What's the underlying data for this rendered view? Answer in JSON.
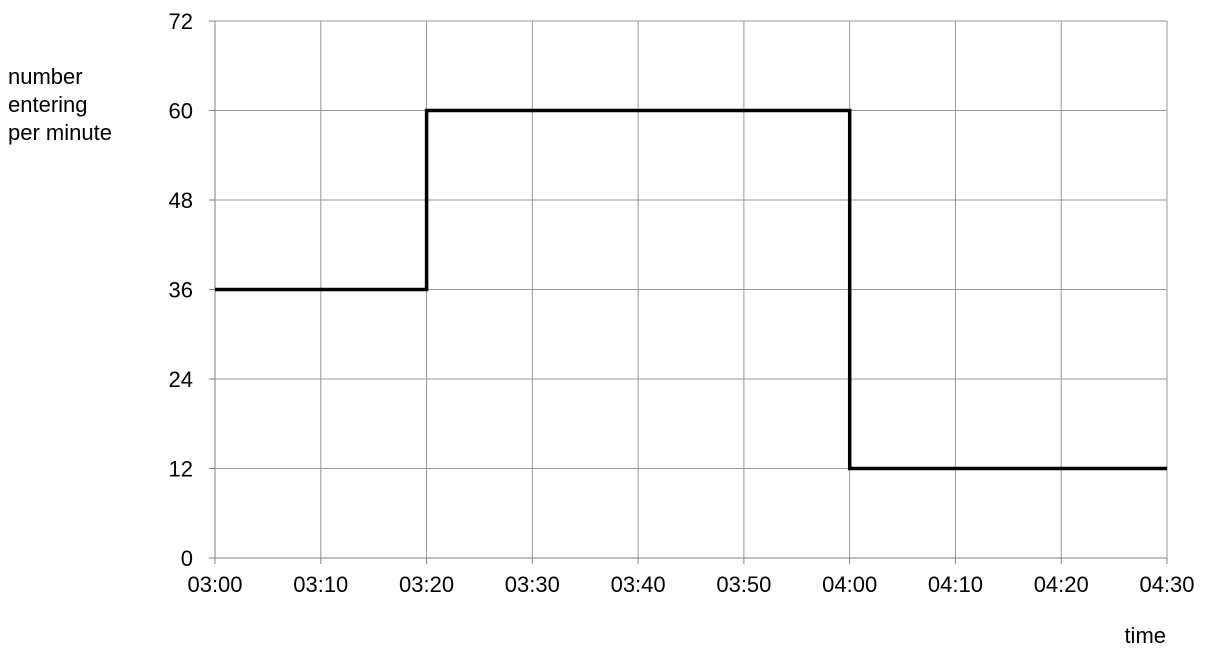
{
  "chart_data": {
    "type": "line",
    "step": true,
    "title": "",
    "xlabel": "time",
    "ylabel_lines": [
      "number",
      "entering",
      "per minute"
    ],
    "x_tick_labels": [
      "03:00",
      "03:10",
      "03:20",
      "03:30",
      "03:40",
      "03:50",
      "04:00",
      "04:10",
      "04:20",
      "04:30"
    ],
    "y_tick_labels": [
      "0",
      "12",
      "24",
      "36",
      "48",
      "60",
      "72"
    ],
    "xlim": [
      "03:00",
      "04:30"
    ],
    "ylim": [
      0,
      72
    ],
    "grid": true,
    "series": [
      {
        "x": [
          "03:00",
          "03:20",
          "03:20",
          "04:00",
          "04:00",
          "04:30"
        ],
        "y": [
          36,
          36,
          60,
          60,
          12,
          12
        ],
        "color": "#000000"
      }
    ],
    "colors": {
      "grid": "#999999",
      "line": "#000000",
      "axis": "#808080"
    }
  }
}
